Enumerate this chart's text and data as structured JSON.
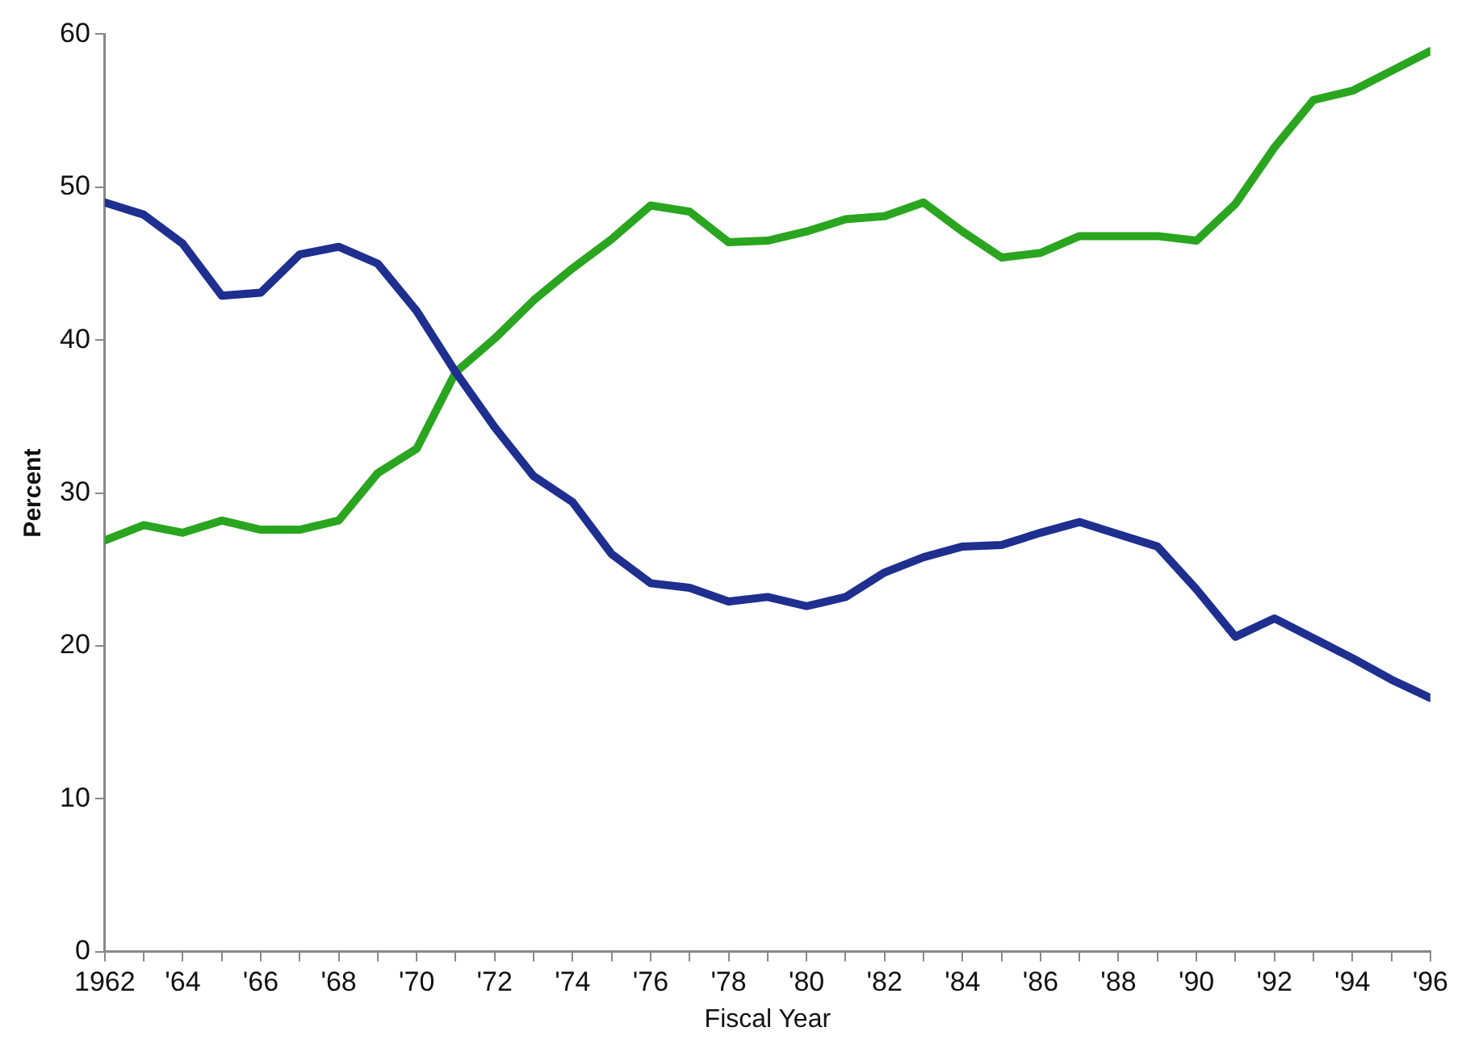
{
  "chart_data": {
    "type": "line",
    "xlabel": "Fiscal Year",
    "ylabel": "Percent",
    "x": [
      1962,
      1963,
      1964,
      1965,
      1966,
      1967,
      1968,
      1969,
      1970,
      1971,
      1972,
      1973,
      1974,
      1975,
      1976,
      1977,
      1978,
      1979,
      1980,
      1981,
      1982,
      1983,
      1984,
      1985,
      1986,
      1987,
      1988,
      1989,
      1990,
      1991,
      1992,
      1993,
      1994,
      1995,
      1996
    ],
    "series": [
      {
        "color": "#1f2f8f",
        "values": [
          49.0,
          48.2,
          46.3,
          42.9,
          43.1,
          45.6,
          46.1,
          45.0,
          41.9,
          37.9,
          34.3,
          31.1,
          29.4,
          26.0,
          24.1,
          23.8,
          22.9,
          23.2,
          22.6,
          23.2,
          24.8,
          25.8,
          26.5,
          26.6,
          27.4,
          28.1,
          27.3,
          26.5,
          23.7,
          20.6,
          21.8,
          20.5,
          19.2,
          17.8,
          16.6
        ]
      },
      {
        "color": "#2aa51f",
        "values": [
          26.9,
          27.9,
          27.4,
          28.2,
          27.6,
          27.6,
          28.2,
          31.3,
          32.9,
          37.9,
          40.1,
          42.6,
          44.7,
          46.6,
          48.8,
          48.4,
          46.4,
          46.5,
          47.1,
          47.9,
          48.1,
          49.0,
          47.1,
          45.4,
          45.7,
          46.8,
          46.8,
          46.8,
          46.5,
          48.9,
          52.6,
          55.7,
          56.3,
          57.6,
          58.9
        ]
      }
    ],
    "xlim": [
      1962,
      1996
    ],
    "xticks": [
      {
        "value": 1962,
        "label": "1962"
      },
      {
        "value": 1963,
        "label": null
      },
      {
        "value": 1964,
        "label": "'64"
      },
      {
        "value": 1965,
        "label": null
      },
      {
        "value": 1966,
        "label": "'66"
      },
      {
        "value": 1967,
        "label": null
      },
      {
        "value": 1968,
        "label": "'68"
      },
      {
        "value": 1969,
        "label": null
      },
      {
        "value": 1970,
        "label": "'70"
      },
      {
        "value": 1971,
        "label": null
      },
      {
        "value": 1972,
        "label": "'72"
      },
      {
        "value": 1973,
        "label": null
      },
      {
        "value": 1974,
        "label": "'74"
      },
      {
        "value": 1975,
        "label": null
      },
      {
        "value": 1976,
        "label": "'76"
      },
      {
        "value": 1977,
        "label": null
      },
      {
        "value": 1978,
        "label": "'78"
      },
      {
        "value": 1979,
        "label": null
      },
      {
        "value": 1980,
        "label": "'80"
      },
      {
        "value": 1981,
        "label": null
      },
      {
        "value": 1982,
        "label": "'82"
      },
      {
        "value": 1983,
        "label": null
      },
      {
        "value": 1984,
        "label": "'84"
      },
      {
        "value": 1985,
        "label": null
      },
      {
        "value": 1986,
        "label": "'86"
      },
      {
        "value": 1987,
        "label": null
      },
      {
        "value": 1988,
        "label": "'88"
      },
      {
        "value": 1989,
        "label": null
      },
      {
        "value": 1990,
        "label": "'90"
      },
      {
        "value": 1991,
        "label": null
      },
      {
        "value": 1992,
        "label": "'92"
      },
      {
        "value": 1993,
        "label": null
      },
      {
        "value": 1994,
        "label": "'94"
      },
      {
        "value": 1995,
        "label": null
      },
      {
        "value": 1996,
        "label": "'96"
      }
    ],
    "ylim": [
      0,
      60
    ],
    "yticks": [
      0,
      10,
      20,
      30,
      40,
      50,
      60
    ],
    "grid": false,
    "legend": false,
    "marker": "none",
    "line_style": "solid"
  }
}
